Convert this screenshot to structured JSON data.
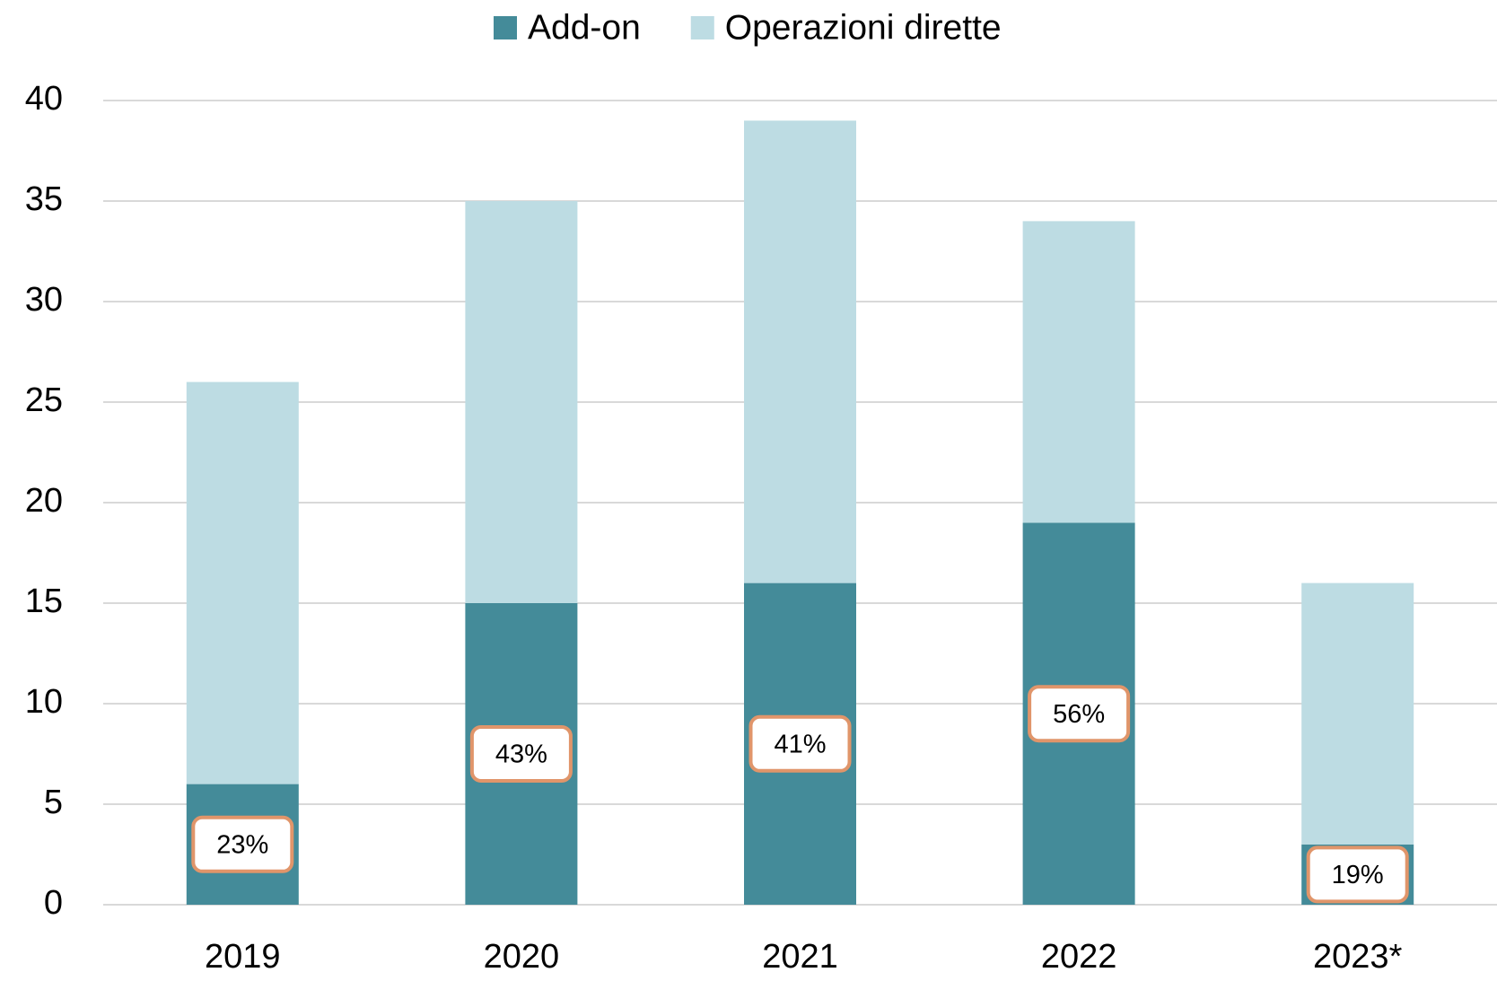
{
  "chart_data": {
    "type": "stacked_bar",
    "categories": [
      "2019",
      "2020",
      "2021",
      "2022",
      "2023*"
    ],
    "series": [
      {
        "name": "Add-on",
        "color": "#448b99",
        "values": [
          6,
          15,
          16,
          19,
          3
        ]
      },
      {
        "name": "Operazioni dirette",
        "color": "#bddce3",
        "values": [
          20,
          20,
          23,
          15,
          13
        ]
      }
    ],
    "annotations": [
      "23%",
      "43%",
      "41%",
      "56%",
      "19%"
    ],
    "ylim": [
      0,
      40
    ],
    "yticks": [
      0,
      5,
      10,
      15,
      20,
      25,
      30,
      35,
      40
    ],
    "grid": true,
    "legend": "top"
  }
}
